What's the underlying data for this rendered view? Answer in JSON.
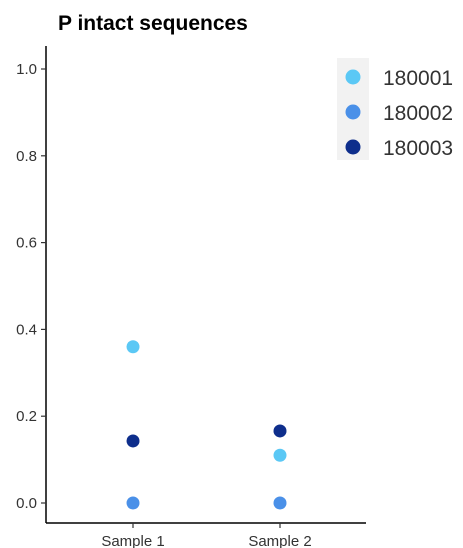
{
  "chart_data": {
    "type": "scatter",
    "title": "P intact sequences",
    "xlabel": "",
    "ylabel": "",
    "categories": [
      "Sample 1",
      "Sample 2"
    ],
    "ylim": [
      0,
      1.0
    ],
    "yticks": [
      "0.0",
      "0.2",
      "0.4",
      "0.6",
      "0.8",
      "1.0"
    ],
    "grid": false,
    "legend_position": "top-right",
    "series": [
      {
        "name": "180001",
        "color": "#5BC8F5",
        "values": [
          0.36,
          0.11
        ]
      },
      {
        "name": "180002",
        "color": "#4A90E8",
        "values": [
          0.0,
          0.0
        ]
      },
      {
        "name": "180003",
        "color": "#0E2E8C",
        "values": [
          0.143,
          0.166
        ]
      }
    ]
  }
}
